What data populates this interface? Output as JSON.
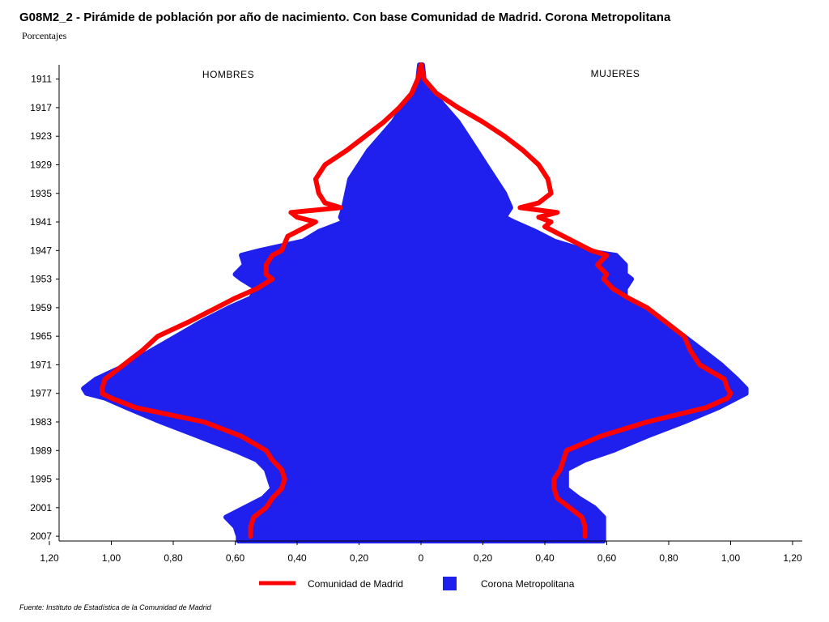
{
  "title": "G08M2_2 - Pirámide de población por año de nacimiento. Con base Comunidad de Madrid. Corona Metropolitana",
  "subtitle": "Porcentajes",
  "source": "Fuente: Instituto de Estadística de la Comunidad de Madrid",
  "chart_data": {
    "type": "area",
    "subtype": "population-pyramid",
    "left_label": "HOMBRES",
    "right_label": "MUJERES",
    "x_ticks": [
      "1,20",
      "1,00",
      "0,80",
      "0,60",
      "0,40",
      "0,20",
      "0",
      "0,20",
      "0,40",
      "0,60",
      "0,80",
      "1,00",
      "1,20"
    ],
    "xlim": [
      -1.2,
      1.2
    ],
    "ylim": [
      1908,
      2008
    ],
    "y_ticks": [
      1911,
      1917,
      1923,
      1929,
      1935,
      1941,
      1947,
      1953,
      1959,
      1965,
      1971,
      1977,
      1983,
      1989,
      1995,
      2001,
      2007
    ],
    "legend": {
      "position": "bottom",
      "items": [
        {
          "name": "Comunidad de Madrid",
          "style": "line",
          "color": "#ff0000"
        },
        {
          "name": "Corona Metropolitana",
          "style": "area",
          "color": "#2020ee"
        }
      ]
    },
    "series": [
      {
        "name": "Corona Metropolitana",
        "color": "#2020ee",
        "years": [
          1908,
          1911,
          1914,
          1917,
          1920,
          1923,
          1926,
          1929,
          1932,
          1935,
          1938,
          1940,
          1941,
          1943,
          1945,
          1947,
          1948,
          1950,
          1952,
          1953,
          1955,
          1957,
          1959,
          1962,
          1965,
          1968,
          1971,
          1974,
          1976,
          1977,
          1978,
          1980,
          1983,
          1986,
          1989,
          1991,
          1993,
          1995,
          1997,
          1999,
          2001,
          2003,
          2005,
          2007,
          2008
        ],
        "men": [
          0.005,
          0.01,
          0.03,
          0.06,
          0.09,
          0.13,
          0.17,
          0.2,
          0.23,
          0.24,
          0.25,
          0.26,
          0.25,
          0.33,
          0.38,
          0.52,
          0.58,
          0.57,
          0.6,
          0.58,
          0.53,
          0.55,
          0.62,
          0.71,
          0.79,
          0.87,
          0.95,
          1.05,
          1.09,
          1.08,
          1.02,
          0.95,
          0.84,
          0.72,
          0.6,
          0.53,
          0.5,
          0.49,
          0.48,
          0.51,
          0.57,
          0.63,
          0.6,
          0.59,
          0.59
        ],
        "women": [
          0.005,
          0.01,
          0.04,
          0.08,
          0.12,
          0.15,
          0.18,
          0.21,
          0.24,
          0.27,
          0.29,
          0.27,
          0.3,
          0.37,
          0.43,
          0.53,
          0.63,
          0.66,
          0.66,
          0.68,
          0.66,
          0.66,
          0.7,
          0.78,
          0.85,
          0.91,
          0.97,
          1.02,
          1.05,
          1.05,
          1.02,
          0.96,
          0.85,
          0.73,
          0.62,
          0.53,
          0.47,
          0.47,
          0.47,
          0.51,
          0.56,
          0.59,
          0.59,
          0.59,
          0.59
        ]
      },
      {
        "name": "Comunidad de Madrid",
        "color": "#ff0000",
        "years": [
          1908,
          1911,
          1914,
          1917,
          1920,
          1923,
          1926,
          1929,
          1932,
          1935,
          1937,
          1938,
          1939,
          1940,
          1941,
          1942,
          1944,
          1947,
          1948,
          1950,
          1952,
          1953,
          1955,
          1957,
          1959,
          1962,
          1965,
          1968,
          1971,
          1974,
          1976,
          1977,
          1978,
          1980,
          1983,
          1986,
          1989,
          1991,
          1993,
          1995,
          1997,
          1999,
          2001,
          2003,
          2005,
          2007
        ],
        "men": [
          0.0,
          0.01,
          0.03,
          0.07,
          0.12,
          0.18,
          0.24,
          0.31,
          0.34,
          0.33,
          0.31,
          0.26,
          0.42,
          0.4,
          0.34,
          0.37,
          0.43,
          0.45,
          0.48,
          0.5,
          0.5,
          0.48,
          0.53,
          0.6,
          0.66,
          0.75,
          0.85,
          0.9,
          0.96,
          1.02,
          1.03,
          1.03,
          1.0,
          0.92,
          0.7,
          0.58,
          0.5,
          0.48,
          0.45,
          0.44,
          0.45,
          0.48,
          0.5,
          0.54,
          0.55,
          0.55
        ],
        "women": [
          0.0,
          0.01,
          0.05,
          0.12,
          0.2,
          0.27,
          0.33,
          0.38,
          0.41,
          0.42,
          0.38,
          0.32,
          0.44,
          0.38,
          0.42,
          0.4,
          0.46,
          0.55,
          0.6,
          0.57,
          0.6,
          0.59,
          0.62,
          0.67,
          0.73,
          0.79,
          0.85,
          0.87,
          0.9,
          0.98,
          0.99,
          1.0,
          0.99,
          0.92,
          0.73,
          0.58,
          0.47,
          0.46,
          0.45,
          0.43,
          0.43,
          0.44,
          0.48,
          0.52,
          0.53,
          0.53
        ]
      }
    ]
  }
}
